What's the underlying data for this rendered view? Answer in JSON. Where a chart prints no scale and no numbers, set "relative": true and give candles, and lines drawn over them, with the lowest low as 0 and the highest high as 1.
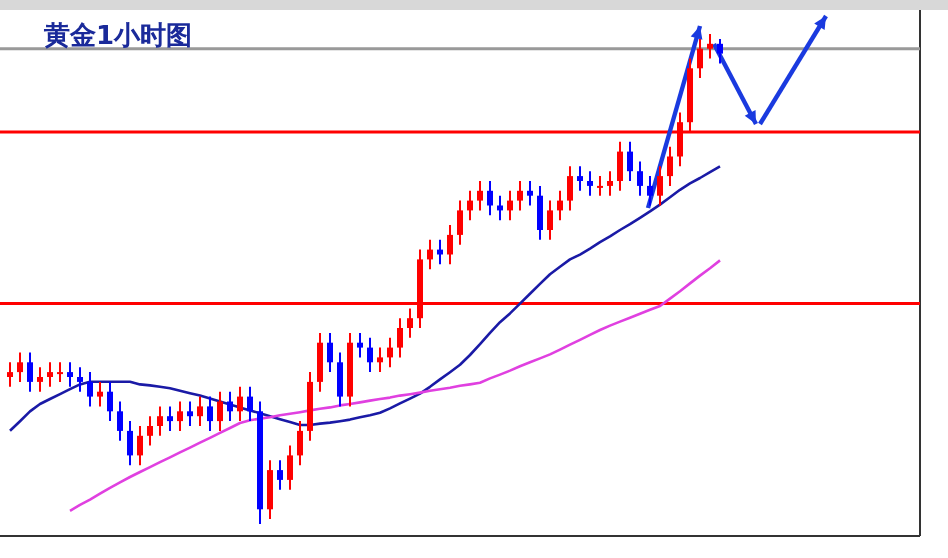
{
  "chart_data": {
    "type": "candlestick",
    "title": "黄金1小时图",
    "relative": true,
    "categories": [
      null,
      null,
      null,
      null,
      null,
      null,
      null,
      null,
      null,
      null,
      null,
      null,
      null,
      null,
      null,
      null,
      null,
      null,
      null,
      null,
      null,
      null,
      null,
      null,
      null,
      null,
      null,
      null,
      null,
      null,
      null,
      null,
      null,
      null,
      null,
      null,
      null,
      null,
      null,
      null,
      null,
      null,
      null,
      null,
      null,
      null,
      null,
      null,
      null,
      null,
      null,
      null,
      null,
      null,
      null,
      null,
      null,
      null,
      null,
      null,
      null,
      null,
      null,
      null,
      null,
      null,
      null,
      null,
      null,
      null,
      null,
      null
    ],
    "ohlc": [
      [
        0.3,
        0.33,
        0.28,
        0.31
      ],
      [
        0.31,
        0.35,
        0.29,
        0.33
      ],
      [
        0.33,
        0.35,
        0.27,
        0.29
      ],
      [
        0.29,
        0.32,
        0.27,
        0.3
      ],
      [
        0.3,
        0.33,
        0.28,
        0.31
      ],
      [
        0.31,
        0.33,
        0.29,
        0.31
      ],
      [
        0.31,
        0.33,
        0.28,
        0.3
      ],
      [
        0.3,
        0.32,
        0.27,
        0.29
      ],
      [
        0.29,
        0.31,
        0.24,
        0.26
      ],
      [
        0.26,
        0.29,
        0.24,
        0.27
      ],
      [
        0.27,
        0.29,
        0.21,
        0.23
      ],
      [
        0.23,
        0.25,
        0.17,
        0.19
      ],
      [
        0.19,
        0.21,
        0.12,
        0.14
      ],
      [
        0.14,
        0.2,
        0.12,
        0.18
      ],
      [
        0.18,
        0.22,
        0.16,
        0.2
      ],
      [
        0.2,
        0.24,
        0.18,
        0.22
      ],
      [
        0.22,
        0.24,
        0.19,
        0.21
      ],
      [
        0.21,
        0.25,
        0.19,
        0.23
      ],
      [
        0.23,
        0.25,
        0.2,
        0.22
      ],
      [
        0.22,
        0.26,
        0.2,
        0.24
      ],
      [
        0.24,
        0.26,
        0.19,
        0.21
      ],
      [
        0.21,
        0.27,
        0.19,
        0.25
      ],
      [
        0.25,
        0.27,
        0.21,
        0.23
      ],
      [
        0.23,
        0.28,
        0.21,
        0.26
      ],
      [
        0.26,
        0.28,
        0.21,
        0.23
      ],
      [
        0.23,
        0.25,
        0,
        0.03
      ],
      [
        0.03,
        0.13,
        0.01,
        0.11
      ],
      [
        0.11,
        0.13,
        0.07,
        0.09
      ],
      [
        0.09,
        0.16,
        0.07,
        0.14
      ],
      [
        0.14,
        0.21,
        0.12,
        0.19
      ],
      [
        0.19,
        0.31,
        0.17,
        0.29
      ],
      [
        0.29,
        0.39,
        0.27,
        0.37
      ],
      [
        0.37,
        0.39,
        0.31,
        0.33
      ],
      [
        0.33,
        0.35,
        0.24,
        0.26
      ],
      [
        0.26,
        0.39,
        0.24,
        0.37
      ],
      [
        0.37,
        0.39,
        0.34,
        0.36
      ],
      [
        0.36,
        0.38,
        0.31,
        0.33
      ],
      [
        0.33,
        0.36,
        0.31,
        0.34
      ],
      [
        0.34,
        0.38,
        0.32,
        0.36
      ],
      [
        0.36,
        0.42,
        0.34,
        0.4
      ],
      [
        0.4,
        0.44,
        0.38,
        0.42
      ],
      [
        0.42,
        0.56,
        0.4,
        0.54
      ],
      [
        0.54,
        0.58,
        0.52,
        0.56
      ],
      [
        0.56,
        0.58,
        0.53,
        0.55
      ],
      [
        0.55,
        0.61,
        0.53,
        0.59
      ],
      [
        0.59,
        0.66,
        0.57,
        0.64
      ],
      [
        0.64,
        0.68,
        0.62,
        0.66
      ],
      [
        0.66,
        0.7,
        0.64,
        0.68
      ],
      [
        0.68,
        0.7,
        0.63,
        0.65
      ],
      [
        0.65,
        0.67,
        0.62,
        0.64
      ],
      [
        0.64,
        0.68,
        0.62,
        0.66
      ],
      [
        0.66,
        0.7,
        0.64,
        0.68
      ],
      [
        0.68,
        0.7,
        0.65,
        0.67
      ],
      [
        0.67,
        0.69,
        0.58,
        0.6
      ],
      [
        0.6,
        0.66,
        0.58,
        0.64
      ],
      [
        0.64,
        0.68,
        0.62,
        0.66
      ],
      [
        0.66,
        0.73,
        0.64,
        0.71
      ],
      [
        0.71,
        0.73,
        0.68,
        0.7
      ],
      [
        0.7,
        0.72,
        0.67,
        0.69
      ],
      [
        0.69,
        0.71,
        0.67,
        0.69
      ],
      [
        0.69,
        0.72,
        0.67,
        0.7
      ],
      [
        0.7,
        0.78,
        0.68,
        0.76
      ],
      [
        0.76,
        0.78,
        0.7,
        0.72
      ],
      [
        0.72,
        0.74,
        0.67,
        0.69
      ],
      [
        0.69,
        0.71,
        0.65,
        0.67
      ],
      [
        0.67,
        0.73,
        0.65,
        0.71
      ],
      [
        0.71,
        0.77,
        0.69,
        0.75
      ],
      [
        0.75,
        0.84,
        0.73,
        0.82
      ],
      [
        0.82,
        0.95,
        0.8,
        0.93
      ],
      [
        0.93,
        0.99,
        0.91,
        0.97
      ],
      [
        0.97,
        1,
        0.95,
        0.98
      ],
      [
        0.98,
        0.99,
        0.94,
        0.96
      ]
    ],
    "series": [
      {
        "type": "line",
        "color": "#1a1aa6",
        "values": [
          0.19,
          0.21,
          0.23,
          0.245,
          0.255,
          0.265,
          0.275,
          0.285,
          0.29,
          0.29,
          0.29,
          0.29,
          0.29,
          0.285,
          0.283,
          0.28,
          0.277,
          0.272,
          0.267,
          0.262,
          0.256,
          0.25,
          0.244,
          0.238,
          0.232,
          0.226,
          0.22,
          0.214,
          0.208,
          0.202,
          0.202,
          0.205,
          0.207,
          0.21,
          0.213,
          0.218,
          0.222,
          0.227,
          0.236,
          0.246,
          0.256,
          0.266,
          0.28,
          0.295,
          0.31,
          0.325,
          0.345,
          0.367,
          0.39,
          0.412,
          0.43,
          0.45,
          0.47,
          0.49,
          0.51,
          0.525,
          0.54,
          0.55,
          0.562,
          0.575,
          0.587,
          0.6,
          0.612,
          0.625,
          0.638,
          0.652,
          0.667,
          0.682,
          0.695,
          0.706,
          0.718,
          0.73
        ]
      },
      {
        "type": "line",
        "color": "#e040e0",
        "values": [
          null,
          null,
          null,
          null,
          null,
          null,
          0.027,
          0.039,
          0.05,
          0.062,
          0.074,
          0.085,
          0.096,
          0.106,
          0.116,
          0.126,
          0.136,
          0.146,
          0.156,
          0.166,
          0.176,
          0.186,
          0.196,
          0.206,
          0.212,
          0.215,
          0.218,
          0.222,
          0.225,
          0.228,
          0.232,
          0.235,
          0.238,
          0.242,
          0.245,
          0.248,
          0.252,
          0.255,
          0.258,
          0.262,
          0.265,
          0.268,
          0.272,
          0.275,
          0.278,
          0.282,
          0.285,
          0.288,
          0.297,
          0.305,
          0.313,
          0.322,
          0.33,
          0.338,
          0.346,
          0.356,
          0.366,
          0.376,
          0.386,
          0.396,
          0.405,
          0.413,
          0.421,
          0.429,
          0.437,
          0.445,
          0.46,
          0.475,
          0.491,
          0.507,
          0.522,
          0.538
        ]
      }
    ],
    "ref_lines": [
      {
        "axis": "y",
        "value": 0.8,
        "color": "#ff0000"
      },
      {
        "axis": "y",
        "value": 0.45,
        "color": "#ff0000"
      },
      {
        "axis": "y",
        "value": 0.97,
        "color": "#999999"
      }
    ]
  }
}
